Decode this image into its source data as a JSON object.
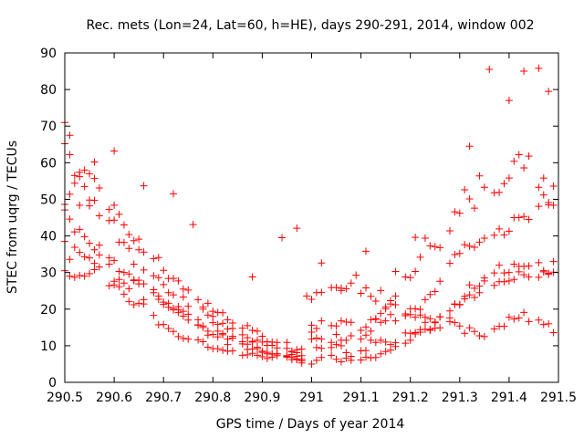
{
  "chart_data": {
    "type": "scatter",
    "title": "Rec. mets (Lon=24, Lat=60, h=HE), days 290-291, 2014, window 002",
    "xlabel": "GPS time / Days of year 2014",
    "ylabel": "STEC from uqrg / TECUs",
    "xlim": [
      290.5,
      291.5
    ],
    "ylim": [
      0,
      90
    ],
    "x_ticks": [
      290.5,
      290.6,
      290.7,
      290.8,
      290.9,
      291.0,
      291.1,
      291.2,
      291.3,
      291.4,
      291.5
    ],
    "x_tick_labels": [
      "290.5",
      "290.6",
      "290.7",
      "290.8",
      "290.9",
      "291",
      "291.1",
      "291.2",
      "291.3",
      "291.4",
      "291.5"
    ],
    "y_ticks": [
      0,
      10,
      20,
      30,
      40,
      50,
      60,
      70,
      80,
      90
    ],
    "y_tick_labels": [
      "0",
      "10",
      "20",
      "30",
      "40",
      "50",
      "60",
      "70",
      "80",
      "90"
    ],
    "grid": false,
    "marker": "plus",
    "marker_color": "#ff0000",
    "series": [
      {
        "name": "STEC",
        "x": [
          290.5,
          290.51,
          290.52,
          290.53,
          290.54,
          290.55,
          290.56,
          290.57,
          290.59,
          290.6,
          290.61,
          290.62,
          290.63,
          290.64,
          290.65,
          290.66,
          290.68,
          290.69,
          290.7,
          290.71,
          290.72,
          290.73,
          290.74,
          290.75,
          290.77,
          290.78,
          290.79,
          290.8,
          290.81,
          290.82,
          290.83,
          290.84,
          290.86,
          290.87,
          290.88,
          290.89,
          290.9,
          290.91,
          290.92,
          290.93,
          290.95,
          290.96,
          290.97,
          290.98,
          290.5,
          290.51,
          290.52,
          290.53,
          290.54,
          290.55,
          290.56,
          290.57,
          290.59,
          290.6,
          290.61,
          290.62,
          290.63,
          290.64,
          290.65,
          290.66,
          290.68,
          290.69,
          290.7,
          290.71,
          290.72,
          290.73,
          290.74,
          290.75,
          290.77,
          290.78,
          290.79,
          290.8,
          290.81,
          290.82,
          290.83,
          290.84,
          290.86,
          290.87,
          290.88,
          290.89,
          290.9,
          290.91,
          290.92,
          290.93,
          290.95,
          290.96,
          290.97,
          290.98,
          290.5,
          290.51,
          290.52,
          290.53,
          290.54,
          290.55,
          290.56,
          290.57,
          290.59,
          290.6,
          290.61,
          290.62,
          290.63,
          290.64,
          290.65,
          290.66,
          290.68,
          290.69,
          290.7,
          290.71,
          290.72,
          290.73,
          290.74,
          290.75,
          290.77,
          290.78,
          290.79,
          290.8,
          290.81,
          290.82,
          290.83,
          290.84,
          290.86,
          290.87,
          290.88,
          290.89,
          290.9,
          290.91,
          290.92,
          290.93,
          290.95,
          290.96,
          290.97,
          290.98,
          290.5,
          290.51,
          290.52,
          290.53,
          290.54,
          290.55,
          290.56,
          290.57,
          290.59,
          290.6,
          290.61,
          290.62,
          290.63,
          290.64,
          290.65,
          290.66,
          290.68,
          290.69,
          290.7,
          290.71,
          290.72,
          290.73,
          290.74,
          290.75,
          290.77,
          290.78,
          290.79,
          290.8,
          290.81,
          290.82,
          290.83,
          290.84,
          290.86,
          290.87,
          290.88,
          290.89,
          290.9,
          290.91,
          290.92,
          290.93,
          290.95,
          290.96,
          290.97,
          290.98,
          290.5,
          290.51,
          290.52,
          290.53,
          290.54,
          290.55,
          290.56,
          290.57,
          290.59,
          290.6,
          290.61,
          290.62,
          290.63,
          290.64,
          290.65,
          290.66,
          290.68,
          290.69,
          290.7,
          290.71,
          290.72,
          290.73,
          290.74,
          290.75,
          290.77,
          290.78,
          290.79,
          290.8,
          290.81,
          290.82,
          290.83,
          290.84,
          290.86,
          290.87,
          290.88,
          290.89,
          290.9,
          290.91,
          290.92,
          290.93,
          290.95,
          290.96,
          290.97,
          290.98,
          291.0,
          291.01,
          291.02,
          291.04,
          291.05,
          291.06,
          291.07,
          291.08,
          291.1,
          291.11,
          291.12,
          291.13,
          291.14,
          291.15,
          291.16,
          291.17,
          291.19,
          291.2,
          291.21,
          291.22,
          291.23,
          291.24,
          291.25,
          291.26,
          291.28,
          291.29,
          291.3,
          291.31,
          291.32,
          291.33,
          291.34,
          291.35,
          291.37,
          291.38,
          291.39,
          291.4,
          291.41,
          291.42,
          291.43,
          291.44,
          291.46,
          291.47,
          291.48,
          291.49,
          291.0,
          291.01,
          291.02,
          291.04,
          291.05,
          291.06,
          291.07,
          291.08,
          291.1,
          291.11,
          291.12,
          291.13,
          291.14,
          291.15,
          291.16,
          291.17,
          291.19,
          291.2,
          291.21,
          291.22,
          291.23,
          291.24,
          291.25,
          291.26,
          291.28,
          291.29,
          291.3,
          291.31,
          291.32,
          291.33,
          291.34,
          291.35,
          291.37,
          291.38,
          291.39,
          291.4,
          291.41,
          291.42,
          291.43,
          291.44,
          291.46,
          291.47,
          291.48,
          291.49,
          291.0,
          291.01,
          291.02,
          291.04,
          291.05,
          291.06,
          291.07,
          291.08,
          291.1,
          291.11,
          291.12,
          291.13,
          291.14,
          291.15,
          291.16,
          291.17,
          291.19,
          291.2,
          291.21,
          291.22,
          291.23,
          291.24,
          291.25,
          291.26,
          291.28,
          291.29,
          291.3,
          291.31,
          291.32,
          291.33,
          291.34,
          291.35,
          291.37,
          291.38,
          291.39,
          291.4,
          291.41,
          291.42,
          291.43,
          291.44,
          291.46,
          291.47,
          291.48,
          291.49,
          291.0,
          291.01,
          291.02,
          291.04,
          291.05,
          291.06,
          291.07,
          291.08,
          291.1,
          291.11,
          291.12,
          291.13,
          291.14,
          291.15,
          291.16,
          291.17,
          291.19,
          291.2,
          291.21,
          291.22,
          291.23,
          291.24,
          291.25,
          291.26,
          291.28,
          291.29,
          291.3,
          291.31,
          291.32,
          291.33,
          291.34,
          291.35,
          291.37,
          291.38,
          291.39,
          291.4,
          291.41,
          291.42,
          291.43,
          291.44,
          291.46,
          291.47,
          291.48,
          291.49,
          291.0,
          291.01,
          291.02,
          291.04,
          291.05,
          291.06,
          291.07,
          291.08,
          291.1,
          291.11,
          291.12,
          291.13,
          291.14,
          291.15,
          291.16,
          291.17,
          291.19,
          291.2,
          291.21,
          291.22,
          291.23,
          291.24,
          291.25,
          291.26,
          291.28,
          291.29,
          291.3,
          291.31,
          291.32,
          291.33,
          291.34,
          291.35,
          291.37,
          291.38,
          291.39,
          291.4,
          291.41,
          291.42,
          291.43,
          291.44,
          291.46,
          291.47,
          291.48,
          291.49,
          290.5,
          290.51,
          290.53,
          290.55,
          290.56,
          290.6,
          290.66,
          290.72,
          290.76,
          291.32,
          291.36,
          291.4,
          291.43,
          291.46,
          291.48,
          290.94,
          290.97,
          291.02,
          291.06,
          291.09,
          291.17,
          290.88,
          290.99,
          291.11,
          291.21
        ],
        "y": [
          30.5,
          29.0,
          28.7,
          29.2,
          29.0,
          29.7,
          30.8,
          31.5,
          26.4,
          26.6,
          26.1,
          24.1,
          22.1,
          21.2,
          21.6,
          21.4,
          18.3,
          15.7,
          15.8,
          14.7,
          13.9,
          12.5,
          12.0,
          11.8,
          11.6,
          11.1,
          9.6,
          9.2,
          9.2,
          8.8,
          8.5,
          8.6,
          7.4,
          7.5,
          7.9,
          7.4,
          7.0,
          6.5,
          6.9,
          7.3,
          6.9,
          6.8,
          6.2,
          5.9,
          48.6,
          51.4,
          54.4,
          48.4,
          53.5,
          48.2,
          49.7,
          45.5,
          47.2,
          44.3,
          38.3,
          38.2,
          36.6,
          32.3,
          36.2,
          30.7,
          29.1,
          28.6,
          26.7,
          24.5,
          23.9,
          20.7,
          23.3,
          20.8,
          17.1,
          20.0,
          18.4,
          18.0,
          15.8,
          16.1,
          14.6,
          14.7,
          13.0,
          12.2,
          11.2,
          11.5,
          11.0,
          10.1,
          10.1,
          9.4,
          9.3,
          8.3,
          8.9,
          9.1,
          38.5,
          33.6,
          36.9,
          35.5,
          34.3,
          34.0,
          32.5,
          37.5,
          34.0,
          27.6,
          28.1,
          27.1,
          25.6,
          28.0,
          26.9,
          22.6,
          25.3,
          23.6,
          21.9,
          20.5,
          20.2,
          19.8,
          18.1,
          18.6,
          15.6,
          15.4,
          12.9,
          16.3,
          14.0,
          13.0,
          11.8,
          12.6,
          11.1,
          10.4,
          11.0,
          9.6,
          8.5,
          7.8,
          7.7,
          7.8,
          7.3,
          7.6,
          7.1,
          6.3,
          65.2,
          62.2,
          56.5,
          56.2,
          58.0,
          57.0,
          55.7,
          53.1,
          44.2,
          48.4,
          45.9,
          43.0,
          40.4,
          38.7,
          39.1,
          35.6,
          33.8,
          34.1,
          30.6,
          28.4,
          28.4,
          27.7,
          25.5,
          25.2,
          22.6,
          20.6,
          21.6,
          19.4,
          19.1,
          19.0,
          17.1,
          16.2,
          14.8,
          15.5,
          14.2,
          14.0,
          12.6,
          11.1,
          11.0,
          10.9,
          10.9,
          8.5,
          8.1,
          7.3,
          47.1,
          44.6,
          41.1,
          41.8,
          39.8,
          38.0,
          36.2,
          34.8,
          32.3,
          33.3,
          30.3,
          30.0,
          29.6,
          27.8,
          27.9,
          26.9,
          24.5,
          22.7,
          21.3,
          21.6,
          19.8,
          19.1,
          19.4,
          17.0,
          15.7,
          15.0,
          14.0,
          13.1,
          12.4,
          13.3,
          10.3,
          12.1,
          10.5,
          9.0,
          9.1,
          9.2,
          8.2,
          8.2,
          7.8,
          7.8,
          7.1,
          6.2,
          6.4,
          5.3,
          5.0,
          6.0,
          6.8,
          7.4,
          6.3,
          5.6,
          6.6,
          6.0,
          6.1,
          6.9,
          6.7,
          6.8,
          7.8,
          8.4,
          8.8,
          9.8,
          10.7,
          11.5,
          13.6,
          13.7,
          14.5,
          14.2,
          16.5,
          17.9,
          17.6,
          21.3,
          21.3,
          22.8,
          26.6,
          25.7,
          26.3,
          28.5,
          29.9,
          32.0,
          29.9,
          30.0,
          32.3,
          31.7,
          31.7,
          31.8,
          32.7,
          30.5,
          29.8,
          33.0,
          11.8,
          9.5,
          9.3,
          9.5,
          10.3,
          10.0,
          8.1,
          7.1,
          8.6,
          8.7,
          11.5,
          10.9,
          11.5,
          11.0,
          10.3,
          10.8,
          13.5,
          13.4,
          13.2,
          14.4,
          16.4,
          14.5,
          14.8,
          17.9,
          19.5,
          21.4,
          21.2,
          23.5,
          23.9,
          23.2,
          24.5,
          27.7,
          26.5,
          27.5,
          27.5,
          27.7,
          28.1,
          30.2,
          29.4,
          28.8,
          28.7,
          30.2,
          29.5,
          30.1,
          15.6,
          14.7,
          16.8,
          15.5,
          15.4,
          16.8,
          16.5,
          16.4,
          14.2,
          15.1,
          17.1,
          17.2,
          16.4,
          16.8,
          18.5,
          16.8,
          18.2,
          20.1,
          20.1,
          19.9,
          22.6,
          24.0,
          24.8,
          27.6,
          32.5,
          34.9,
          35.2,
          37.6,
          37.2,
          36.9,
          38.3,
          39.4,
          40.2,
          41.9,
          40.3,
          41.3,
          45.0,
          45.0,
          45.3,
          44.5,
          48.1,
          51.2,
          48.5,
          48.4,
          22.7,
          24.5,
          24.6,
          25.9,
          25.9,
          25.1,
          25.6,
          27.1,
          24.3,
          25.8,
          23.5,
          22.2,
          25.1,
          20.6,
          22.3,
          21.2,
          18.7,
          18.5,
          17.8,
          18.4,
          17.8,
          17.4,
          16.3,
          14.9,
          16.6,
          16.3,
          15.4,
          13.4,
          14.9,
          13.9,
          12.7,
          12.5,
          14.6,
          15.3,
          15.3,
          17.8,
          17.3,
          17.6,
          19.1,
          16.6,
          17.0,
          15.8,
          16.0,
          13.6,
          13.7,
          12.1,
          11.8,
          10.9,
          13.1,
          11.5,
          11.5,
          12.7,
          11.8,
          12.9,
          14.0,
          17.4,
          18.8,
          20.1,
          21.4,
          23.6,
          28.8,
          28.6,
          30.3,
          34.2,
          39.4,
          37.3,
          37.1,
          36.8,
          41.4,
          46.6,
          46.2,
          52.6,
          50.1,
          47.6,
          56.4,
          53.3,
          51.8,
          51.9,
          54.3,
          55.8,
          60.4,
          62.2,
          58.6,
          61.8,
          53.3,
          55.8,
          49.1,
          53.6,
          71.0,
          67.5,
          57.4,
          49.8,
          60.2,
          63.2,
          53.7,
          51.5,
          43.1,
          64.5,
          85.5,
          77.0,
          85.0,
          85.8,
          79.5,
          39.5,
          42.1,
          32.6,
          25.7,
          29.3,
          30.3,
          28.8,
          23.6,
          35.8,
          39.6
        ]
      }
    ]
  }
}
